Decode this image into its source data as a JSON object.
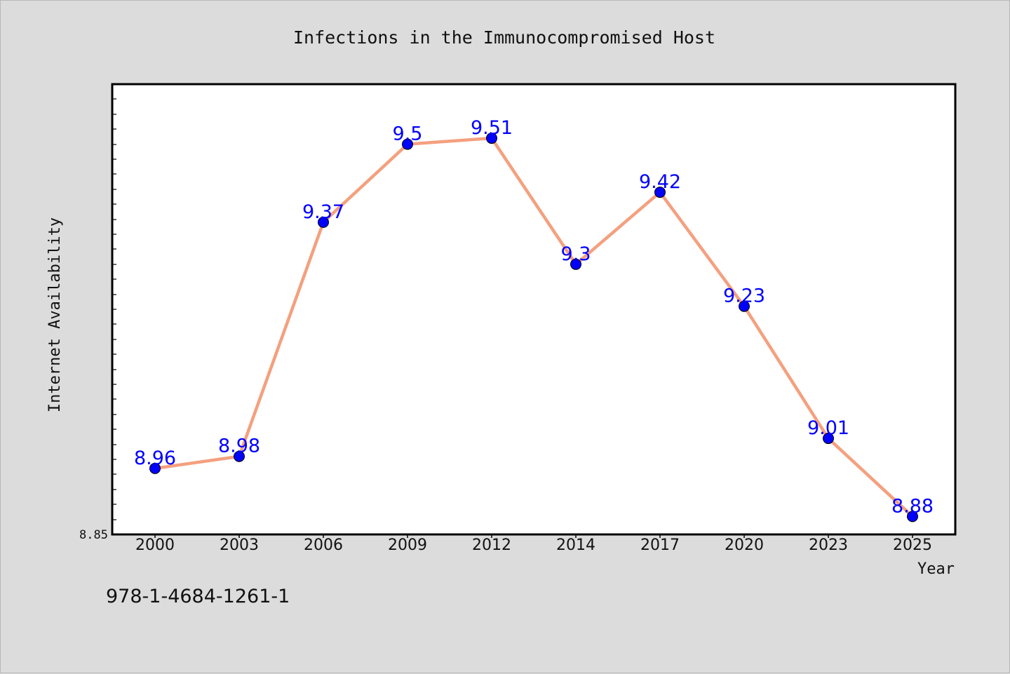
{
  "chart_data": {
    "type": "line",
    "title": "Infections in the Immunocompromised Host",
    "xlabel": "Year",
    "ylabel": "Internet Availability",
    "categories": [
      "2000",
      "2003",
      "2006",
      "2009",
      "2012",
      "2014",
      "2017",
      "2020",
      "2023",
      "2025"
    ],
    "series": [
      {
        "values": [
          8.96,
          8.98,
          9.37,
          9.5,
          9.51,
          9.3,
          9.42,
          9.23,
          9.01,
          8.88
        ],
        "data_labels": [
          "8.96",
          "8.98",
          "9.37",
          "9.5",
          "9.51",
          "9.3",
          "9.42",
          "9.23",
          "9.01",
          "8.88"
        ]
      }
    ],
    "y_tick_labels": [
      "8.85"
    ],
    "ylim": [
      8.85,
      9.6
    ],
    "grid": false,
    "legend": "none",
    "colors": {
      "line": "#f4a07f",
      "marker": "#0000ff",
      "data_label": "#0000ff",
      "plot_background": "#ffffff",
      "figure_background": "#dcdcdc"
    }
  },
  "footer": {
    "isbn": "978-1-4684-1261-1"
  }
}
